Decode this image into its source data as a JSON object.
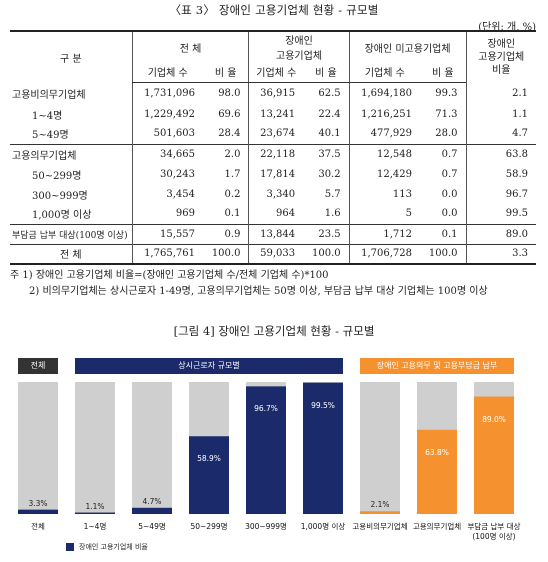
{
  "table": {
    "title": "〈표 3〉 장애인 고용기업체 현황 - 규모별",
    "unit": "(단위: 개, %)",
    "headers": {
      "category": "구 분",
      "total": "전 체",
      "disabled_line1": "장애인",
      "disabled_line2": "고용기업체",
      "non_disabled": "장애인 미고용기업체",
      "rate_line1": "장애인",
      "rate_line2": "고용기업체",
      "rate_line3": "비율",
      "count": "기업체 수",
      "ratio": "비 율"
    },
    "rows": [
      {
        "label": "고용비의무기업체",
        "sub": false,
        "t_cnt": "1,731,096",
        "t_rat": "98.0",
        "d_cnt": "36,915",
        "d_rat": "62.5",
        "n_cnt": "1,694,180",
        "n_rat": "99.3",
        "rate": "2.1"
      },
      {
        "label": "1~4명",
        "sub": true,
        "t_cnt": "1,229,492",
        "t_rat": "69.6",
        "d_cnt": "13,241",
        "d_rat": "22.4",
        "n_cnt": "1,216,251",
        "n_rat": "71.3",
        "rate": "1.1"
      },
      {
        "label": "5~49명",
        "sub": true,
        "t_cnt": "501,603",
        "t_rat": "28.4",
        "d_cnt": "23,674",
        "d_rat": "40.1",
        "n_cnt": "477,929",
        "n_rat": "28.0",
        "rate": "4.7"
      },
      {
        "label": "고용의무기업체",
        "sub": false,
        "t_cnt": "34,665",
        "t_rat": "2.0",
        "d_cnt": "22,118",
        "d_rat": "37.5",
        "n_cnt": "12,548",
        "n_rat": "0.7",
        "rate": "63.8"
      },
      {
        "label": "50~299명",
        "sub": true,
        "t_cnt": "30,243",
        "t_rat": "1.7",
        "d_cnt": "17,814",
        "d_rat": "30.2",
        "n_cnt": "12,429",
        "n_rat": "0.7",
        "rate": "58.9"
      },
      {
        "label": "300~999명",
        "sub": true,
        "t_cnt": "3,454",
        "t_rat": "0.2",
        "d_cnt": "3,340",
        "d_rat": "5.7",
        "n_cnt": "113",
        "n_rat": "0.0",
        "rate": "96.7"
      },
      {
        "label": "1,000명 이상",
        "sub": true,
        "t_cnt": "969",
        "t_rat": "0.1",
        "d_cnt": "964",
        "d_rat": "1.6",
        "n_cnt": "5",
        "n_rat": "0.0",
        "rate": "99.5"
      },
      {
        "label": "부담금 납부 대상(100명 이상)",
        "sub": false,
        "t_cnt": "15,557",
        "t_rat": "0.9",
        "d_cnt": "13,844",
        "d_rat": "23.5",
        "n_cnt": "1,712",
        "n_rat": "0.1",
        "rate": "89.0"
      }
    ],
    "total": {
      "label": "전 체",
      "t_cnt": "1,765,761",
      "t_rat": "100.0",
      "d_cnt": "59,033",
      "d_rat": "100.0",
      "n_cnt": "1,706,728",
      "n_rat": "100.0",
      "rate": "3.3"
    }
  },
  "notes": {
    "n1": "주 1) 장애인 고용기업체 비율=(장애인 고용기업체 수/전체 기업체 수)*100",
    "n2": "2) 비의무기업체는 상시근로자 1-49명, 고용의무기업체는 50명 이상, 부담금 납부 대상 기업체는 100명 이상"
  },
  "figure_title": "[그림 4] 장애인 고용기업체 현황 - 규모별",
  "chart_data": {
    "type": "bar",
    "groups": [
      {
        "label": "전체",
        "color": "#333333",
        "span": [
          0,
          0
        ]
      },
      {
        "label": "상시근로자 규모별",
        "color": "#1b2a6b",
        "span": [
          1,
          5
        ]
      },
      {
        "label": "장애인 고용의무 및 고용부담금 납부",
        "color": "#f5922f",
        "span": [
          6,
          8
        ]
      }
    ],
    "categories": [
      "전체",
      "1~4명",
      "5~49명",
      "50~299명",
      "300~999명",
      "1,000명 이상",
      "고용비의무기업체",
      "고용의무기업체",
      "부담금 납부 대상 (100명 이상)"
    ],
    "values": [
      3.3,
      1.1,
      4.7,
      58.9,
      96.7,
      99.5,
      2.1,
      63.8,
      89.0
    ],
    "value_labels": [
      "3.3%",
      "1.1%",
      "4.7%",
      "58.9%",
      "96.7%",
      "99.5%",
      "2.1%",
      "63.8%",
      "89.0%"
    ],
    "bar_colors": [
      "#1b2a6b",
      "#1b2a6b",
      "#1b2a6b",
      "#1b2a6b",
      "#1b2a6b",
      "#1b2a6b",
      "#f5922f",
      "#f5922f",
      "#f5922f"
    ],
    "background_color": "#cfcfcf",
    "ylim": [
      0,
      100
    ],
    "legend": "장애인 고용기업체 비율"
  }
}
